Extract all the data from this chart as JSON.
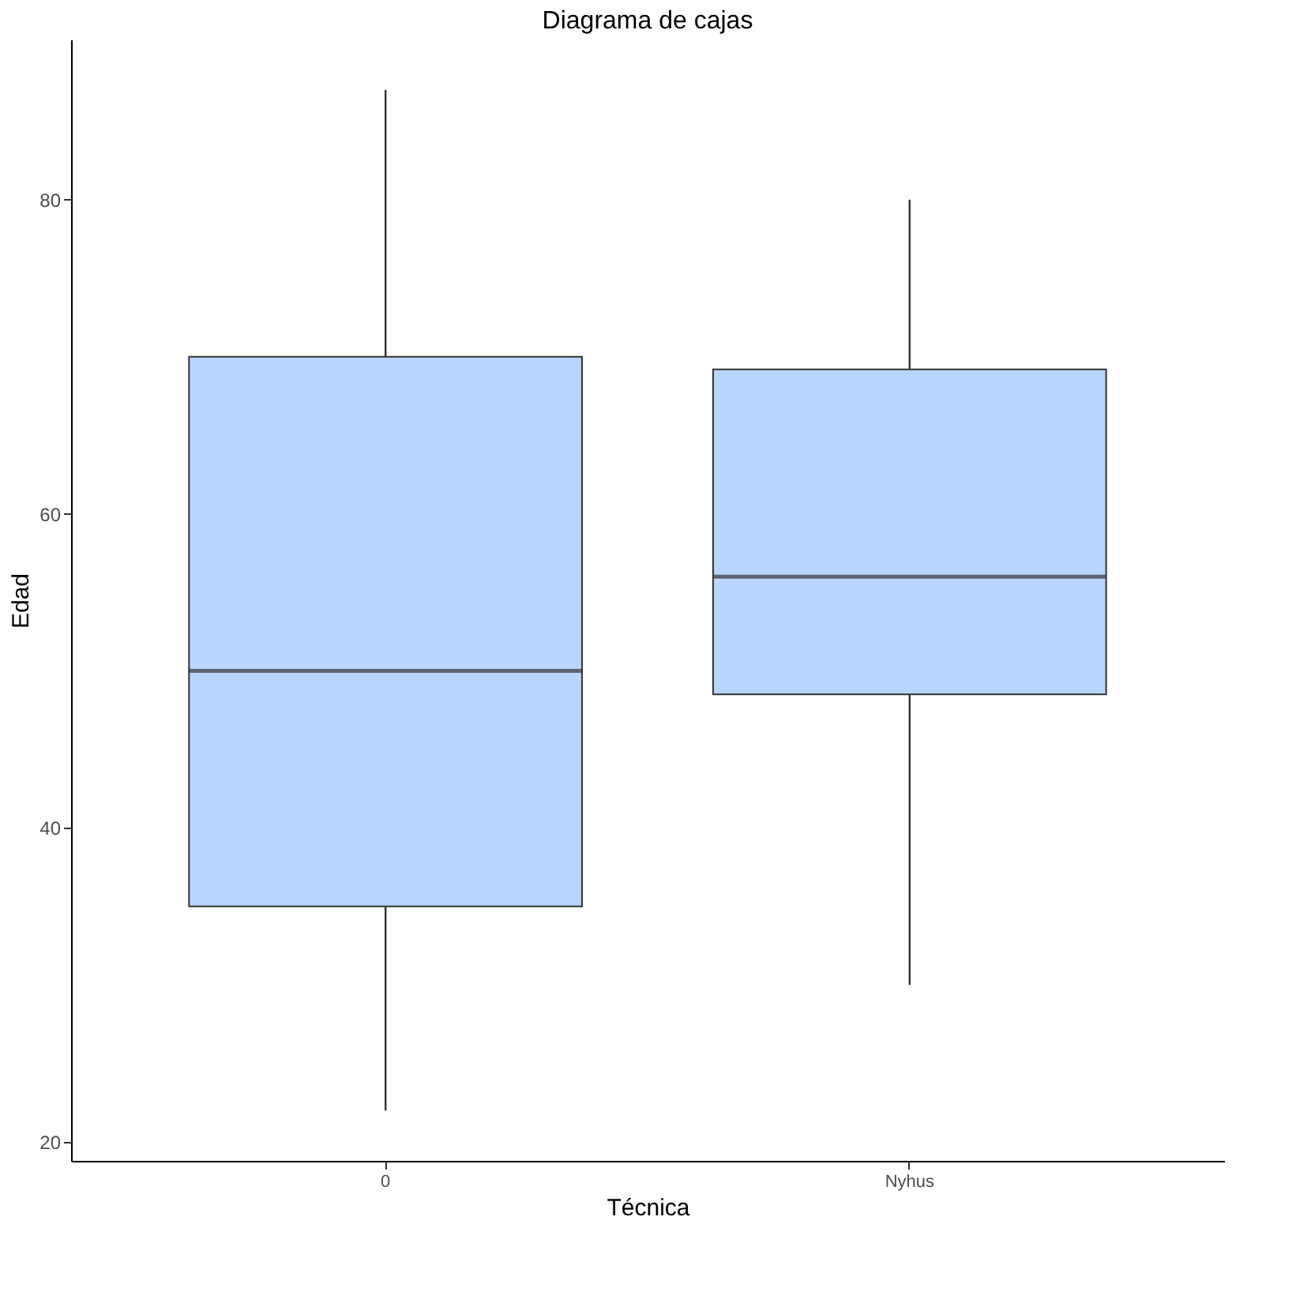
{
  "chart_data": {
    "type": "box",
    "title": "Diagrama de cajas",
    "xlabel": "Técnica",
    "ylabel": "Edad",
    "categories": [
      "0",
      "Nyhus"
    ],
    "series": [
      {
        "color": "#b8d5fd",
        "boxes": [
          {
            "low": 22,
            "q1": 35,
            "median": 50,
            "q3": 70,
            "high": 87
          },
          {
            "low": 30,
            "q1": 48.5,
            "median": 56,
            "q3": 69.2,
            "high": 80
          }
        ]
      }
    ],
    "ylim": [
      18.8,
      90.2
    ],
    "yticks": [
      20,
      40,
      60,
      80
    ],
    "grid": false
  }
}
